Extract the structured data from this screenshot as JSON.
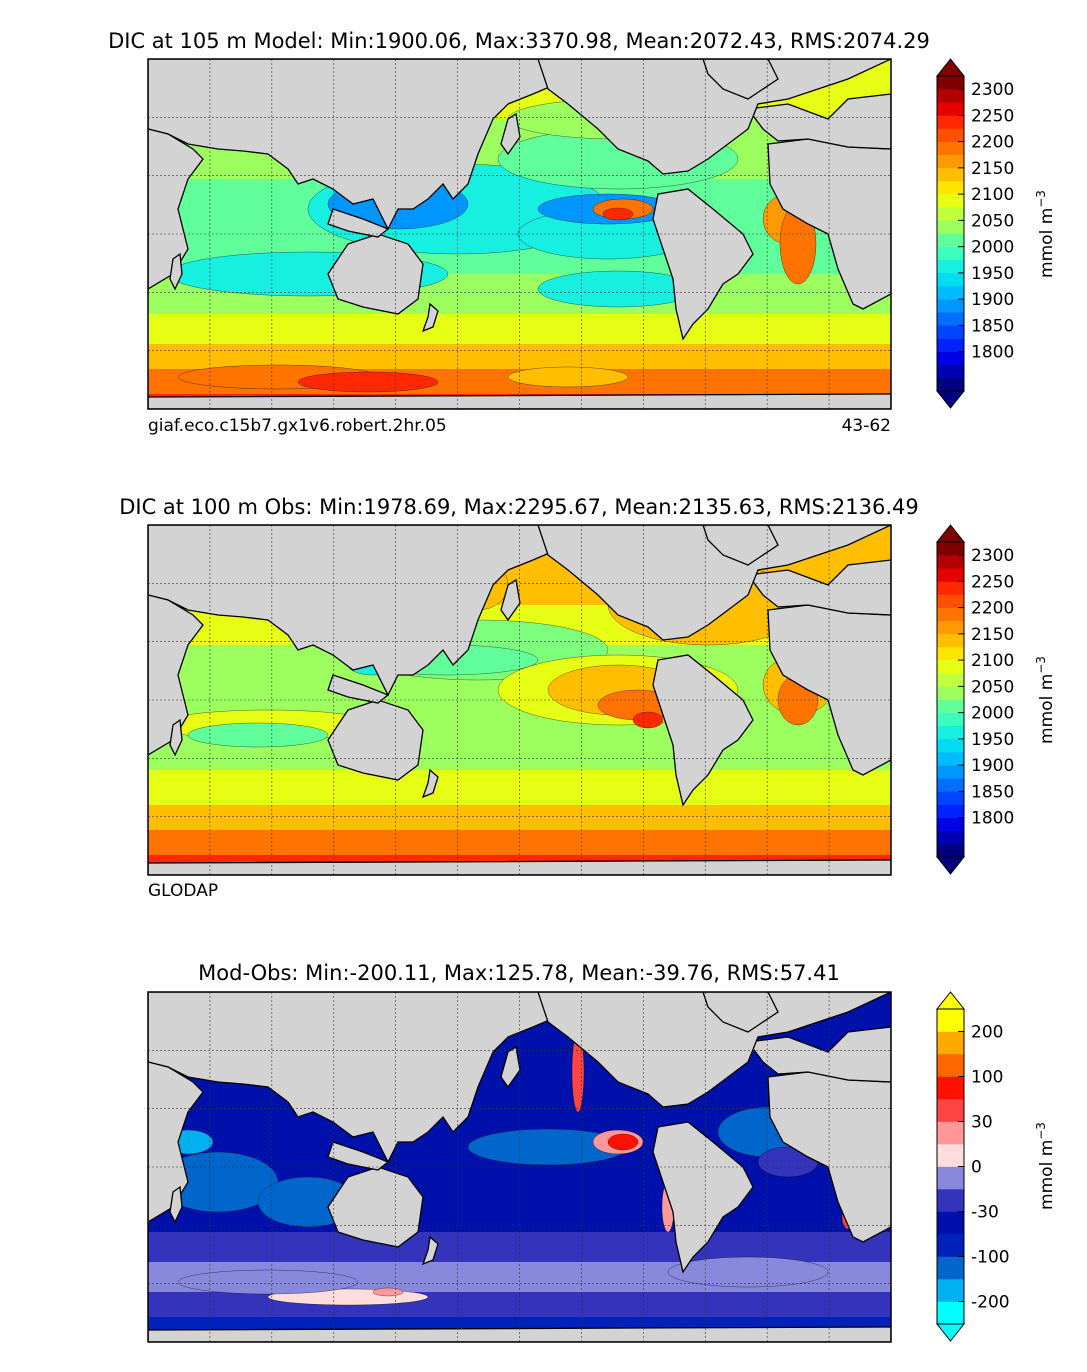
{
  "chart_data": [
    {
      "type": "heatmap",
      "title": "DIC at 105 m Model: Min:1900.06, Max:3370.98, Mean:2072.43, RMS:2074.29",
      "variable": "DIC",
      "depth": "105 m",
      "source": "Model",
      "stats": {
        "min": 1900.06,
        "max": 3370.98,
        "mean": 2072.43,
        "rms": 2074.29
      },
      "footer_left": "giaf.eco.c15b7.gx1v6.robert.2hr.05",
      "footer_right": "43-62",
      "colorbar": {
        "label": "mmol m",
        "label_sup": "−3",
        "ticks": [
          "2300",
          "2250",
          "2200",
          "2150",
          "2100",
          "2050",
          "2000",
          "1950",
          "1900",
          "1850",
          "1800"
        ],
        "levels": [
          1775,
          1800,
          1825,
          1850,
          1875,
          1900,
          1925,
          1950,
          1975,
          2000,
          2025,
          2050,
          2075,
          2100,
          2125,
          2150,
          2175,
          2200,
          2225,
          2250,
          2275,
          2300,
          2325
        ],
        "colors": [
          "#000080",
          "#0000b3",
          "#0000e6",
          "#0022ff",
          "#0046ff",
          "#006eff",
          "#0096ff",
          "#00bcff",
          "#00dcf0",
          "#17f0e0",
          "#3cffbf",
          "#60ff9c",
          "#7dff7d",
          "#9cff5f",
          "#c0ff3c",
          "#e6ff14",
          "#ffe600",
          "#ffbf00",
          "#ff9900",
          "#ff7300",
          "#ff4f00",
          "#ff2800",
          "#e60000",
          "#b30000",
          "#800000"
        ],
        "extend": "both"
      }
    },
    {
      "type": "heatmap",
      "title": "DIC at 100 m Obs: Min:1978.69, Max:2295.67, Mean:2135.63, RMS:2136.49",
      "variable": "DIC",
      "depth": "100 m",
      "source": "Obs",
      "stats": {
        "min": 1978.69,
        "max": 2295.67,
        "mean": 2135.63,
        "rms": 2136.49
      },
      "footer_left": "GLODAP",
      "footer_right": "",
      "colorbar": {
        "label": "mmol m",
        "label_sup": "−3",
        "ticks": [
          "2300",
          "2250",
          "2200",
          "2150",
          "2100",
          "2050",
          "2000",
          "1950",
          "1900",
          "1850",
          "1800"
        ],
        "extend": "both"
      }
    },
    {
      "type": "heatmap",
      "title": "Mod-Obs: Min:-200.11, Max:125.78, Mean:-39.76, RMS:57.41",
      "variable": "DIC difference",
      "stats": {
        "min": -200.11,
        "max": 125.78,
        "mean": -39.76,
        "rms": 57.41
      },
      "footer_left": "",
      "footer_right": "",
      "colorbar": {
        "label": "mmol m",
        "label_sup": "−3",
        "ticks": [
          "200",
          "100",
          "30",
          "0",
          "-30",
          "-100",
          "-200"
        ],
        "colors": [
          "#00ffff",
          "#00b0f0",
          "#0066cc",
          "#0022bb",
          "#0010aa",
          "#3333bb",
          "#8888dd",
          "#ccccee",
          "#ffdddd",
          "#ff9999",
          "#ff4444",
          "#ff1100",
          "#ff6600",
          "#ffaa00",
          "#ffff00"
        ],
        "extend": "both"
      }
    }
  ]
}
